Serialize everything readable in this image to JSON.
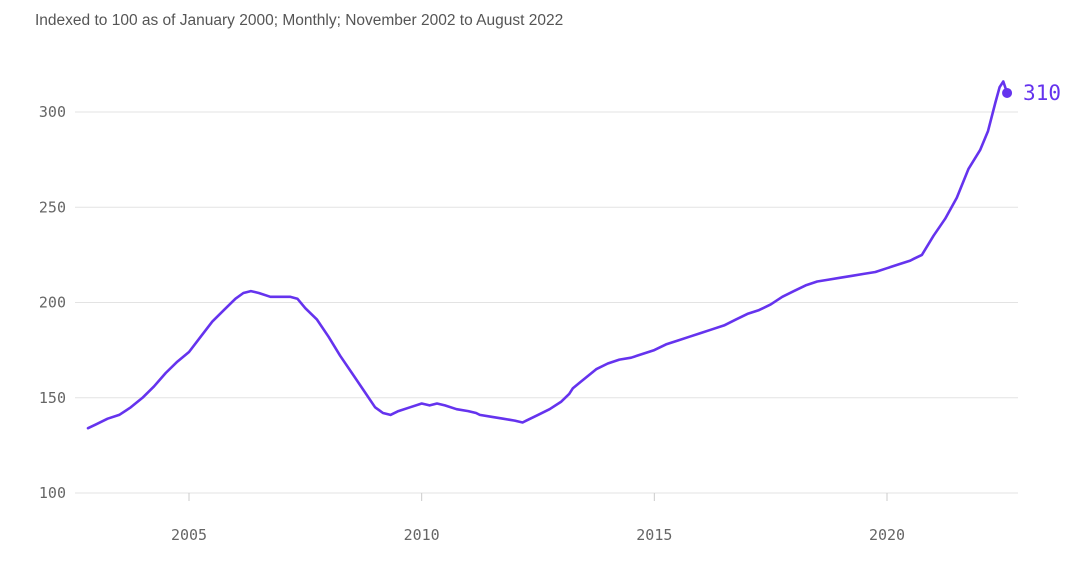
{
  "subtitle": "Indexed to 100 as of January 2000; Monthly; November 2002 to August 2022",
  "colors": {
    "series": "#6533ee",
    "grid": "#e3e3e3",
    "axis_text": "#666666"
  },
  "chart_data": {
    "type": "line",
    "title": "",
    "subtitle": "Indexed to 100 as of January 2000; Monthly; November 2002 to August 2022",
    "xlabel": "",
    "ylabel": "",
    "xlim": [
      2002.83,
      2022.58
    ],
    "ylim": [
      100,
      320
    ],
    "x_ticks": [
      2005,
      2010,
      2015,
      2020
    ],
    "x_tick_labels": [
      "2005",
      "2010",
      "2015",
      "2020"
    ],
    "y_ticks": [
      100,
      150,
      200,
      250,
      300
    ],
    "y_tick_labels": [
      "100",
      "150",
      "200",
      "250",
      "300"
    ],
    "grid": "horizontal",
    "legend": "none",
    "end_value_label": "310",
    "series": [
      {
        "x": [
          2002.83,
          2003.0,
          2003.25,
          2003.5,
          2003.75,
          2004.0,
          2004.25,
          2004.5,
          2004.75,
          2005.0,
          2005.25,
          2005.5,
          2005.75,
          2006.0,
          2006.17,
          2006.33,
          2006.5,
          2006.75,
          2007.0,
          2007.17,
          2007.33,
          2007.5,
          2007.75,
          2008.0,
          2008.25,
          2008.5,
          2008.75,
          2009.0,
          2009.17,
          2009.33,
          2009.5,
          2009.75,
          2010.0,
          2010.17,
          2010.33,
          2010.5,
          2010.75,
          2011.0,
          2011.17,
          2011.25,
          2011.5,
          2011.75,
          2012.0,
          2012.17,
          2012.25,
          2012.5,
          2012.75,
          2013.0,
          2013.17,
          2013.25,
          2013.5,
          2013.75,
          2014.0,
          2014.25,
          2014.5,
          2014.75,
          2015.0,
          2015.25,
          2015.5,
          2015.75,
          2016.0,
          2016.25,
          2016.5,
          2016.75,
          2017.0,
          2017.25,
          2017.5,
          2017.75,
          2018.0,
          2018.25,
          2018.5,
          2018.75,
          2019.0,
          2019.25,
          2019.5,
          2019.75,
          2020.0,
          2020.25,
          2020.5,
          2020.58,
          2020.75,
          2021.0,
          2021.25,
          2021.5,
          2021.75,
          2022.0,
          2022.17,
          2022.33,
          2022.42,
          2022.5,
          2022.58
        ],
        "values": [
          134,
          136,
          139,
          141,
          145,
          150,
          156,
          163,
          169,
          174,
          182,
          190,
          196,
          202,
          205,
          206,
          205,
          203,
          203,
          203,
          202,
          197,
          191,
          182,
          172,
          163,
          154,
          145,
          142,
          141,
          143,
          145,
          147,
          146,
          147,
          146,
          144,
          143,
          142,
          141,
          140,
          139,
          138,
          137,
          138,
          141,
          144,
          148,
          152,
          155,
          160,
          165,
          168,
          170,
          171,
          173,
          175,
          178,
          180,
          182,
          184,
          186,
          188,
          191,
          194,
          196,
          199,
          203,
          206,
          209,
          211,
          212,
          213,
          214,
          215,
          216,
          218,
          220,
          222,
          223,
          225,
          235,
          244,
          255,
          270,
          280,
          290,
          305,
          313,
          316,
          310
        ]
      }
    ]
  }
}
